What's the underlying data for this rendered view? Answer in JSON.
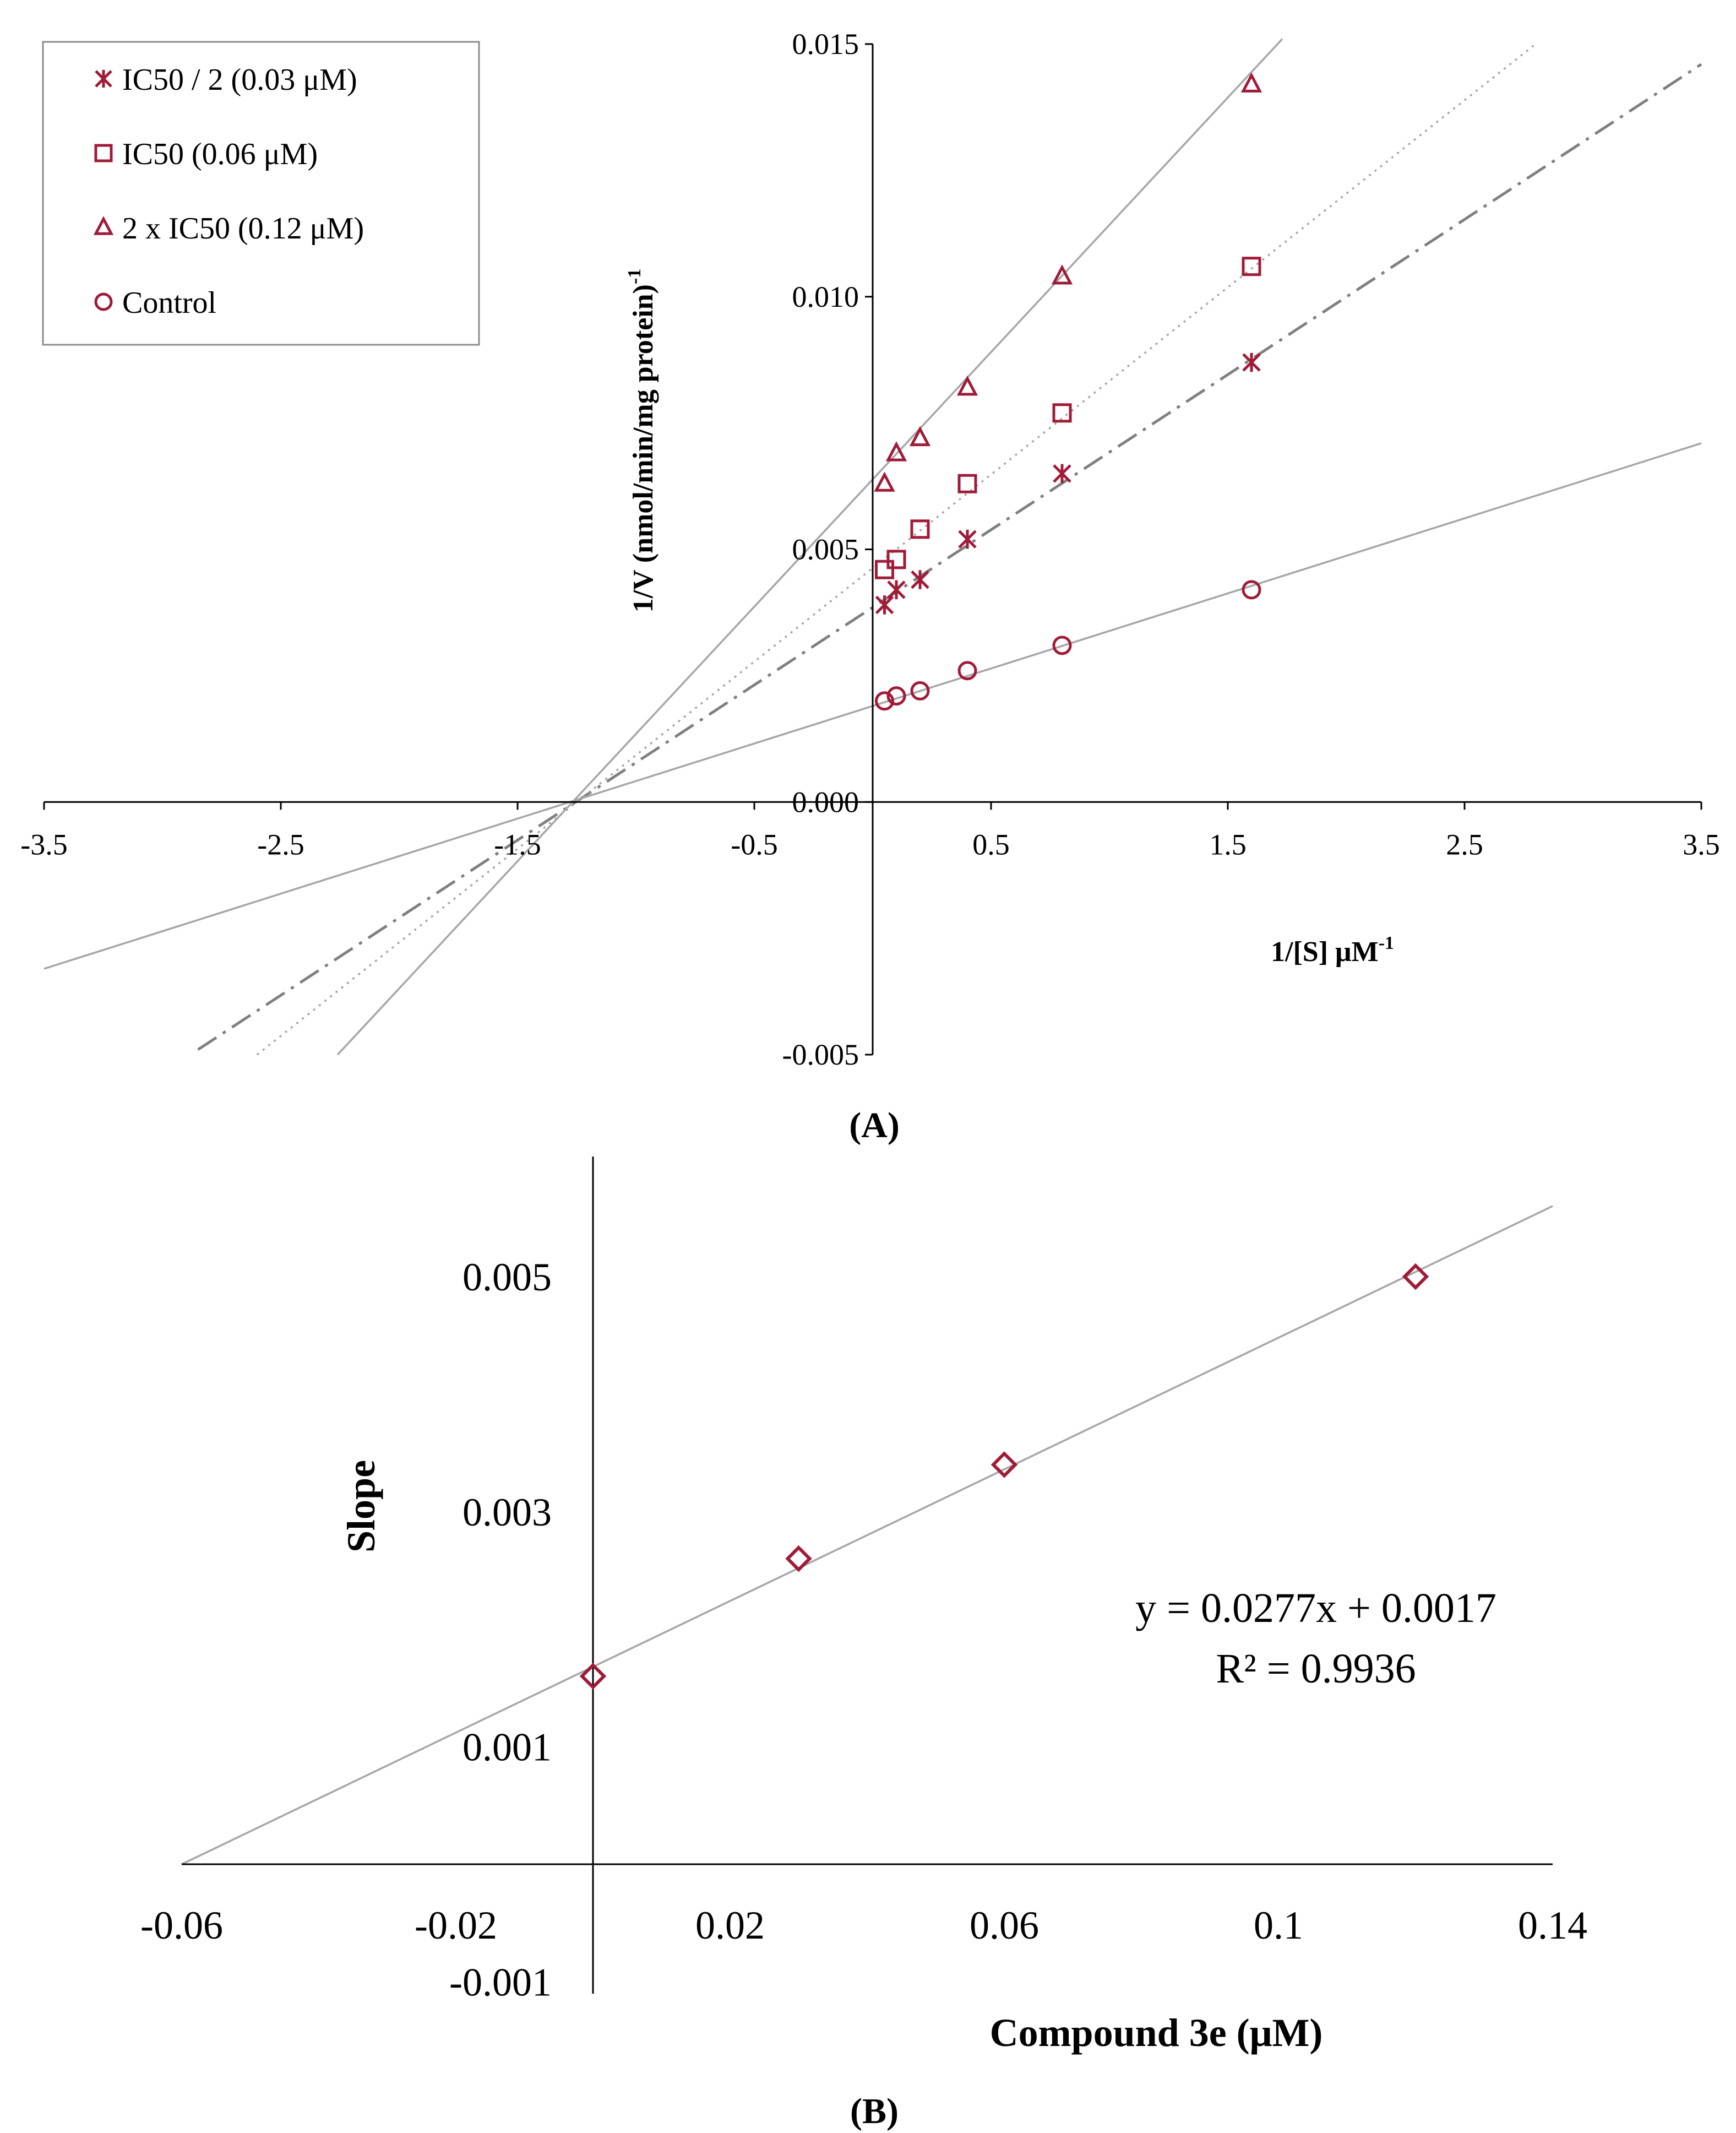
{
  "colors": {
    "marker": "#a01b38",
    "axis": "#000000",
    "fit_line": "#a6a6a6",
    "dash_line": "#7f7f7f"
  },
  "panel_labels": [
    "(A)",
    "(B)"
  ],
  "chart_data": [
    {
      "type": "scatter",
      "title": "",
      "xlabel": "1/[S] μM",
      "xlabel_sup": "-1",
      "ylabel": "1/V (nmol/min/mg protein)",
      "ylabel_sup": "-1",
      "xlim": [
        -3.5,
        3.5
      ],
      "ylim": [
        -0.005,
        0.015
      ],
      "x_ticks": [
        -3.5,
        -2.5,
        -1.5,
        -0.5,
        0.5,
        1.5,
        2.5,
        3.5
      ],
      "x_tick_labels": [
        "-3.5",
        "-2.5",
        "-1.5",
        "-0.5",
        "0.5",
        "1.5",
        "2.5",
        "3.5"
      ],
      "y_ticks": [
        -0.005,
        0.0,
        0.005,
        0.01,
        0.015
      ],
      "y_tick_labels": [
        "-0.005",
        "0.000",
        "0.005",
        "0.010",
        "0.015"
      ],
      "grid": false,
      "legend_position": "top-left",
      "series": [
        {
          "name": "IC50 / 2 (0.03 μM)",
          "marker": "asterisk",
          "line_style": "dash-dot",
          "x": [
            0.05,
            0.1,
            0.2,
            0.4,
            0.8,
            1.6
          ],
          "y": [
            0.0039,
            0.0042,
            0.0044,
            0.0052,
            0.0065,
            0.0087
          ],
          "fit": {
            "x": [
              -2.85,
              3.5
            ],
            "y": [
              -0.0049,
              0.0146
            ]
          }
        },
        {
          "name": "IC50 (0.06 μM)",
          "marker": "square",
          "line_style": "dotted",
          "x": [
            0.05,
            0.1,
            0.2,
            0.4,
            0.8,
            1.6
          ],
          "y": [
            0.0046,
            0.0048,
            0.0054,
            0.0063,
            0.0077,
            0.0106
          ],
          "fit": {
            "x": [
              -2.6,
              2.8
            ],
            "y": [
              -0.005,
              0.015
            ]
          }
        },
        {
          "name": "2 x IC50 (0.12 μM)",
          "marker": "triangle",
          "line_style": "solid",
          "x": [
            0.05,
            0.1,
            0.2,
            0.4,
            0.8,
            1.6
          ],
          "y": [
            0.0063,
            0.0069,
            0.0072,
            0.0082,
            0.0104,
            0.0142
          ],
          "fit": {
            "x": [
              -2.26,
              1.73
            ],
            "y": [
              -0.005,
              0.0151
            ]
          }
        },
        {
          "name": "Control",
          "marker": "circle",
          "line_style": "solid",
          "x": [
            0.05,
            0.1,
            0.2,
            0.4,
            0.8,
            1.6
          ],
          "y": [
            0.002,
            0.0021,
            0.0022,
            0.0026,
            0.0031,
            0.0042
          ],
          "fit": {
            "x": [
              -3.5,
              3.5
            ],
            "y": [
              -0.0033,
              0.0071
            ]
          }
        }
      ]
    },
    {
      "type": "scatter",
      "title": "",
      "xlabel": "Compound 3e (μM)",
      "ylabel": "Slope",
      "xlim": [
        -0.06,
        0.14
      ],
      "ylim": [
        -0.001,
        0.006
      ],
      "x_ticks": [
        -0.06,
        -0.02,
        0.02,
        0.06,
        0.1,
        0.14
      ],
      "x_tick_labels": [
        "-0.06",
        "-0.02",
        "0.02",
        "0.06",
        "0.1",
        "0.14"
      ],
      "y_ticks": [
        -0.001,
        0.001,
        0.003,
        0.005
      ],
      "y_tick_labels": [
        "-0.001",
        "0.001",
        "0.003",
        "0.005"
      ],
      "grid": false,
      "series": [
        {
          "marker": "diamond",
          "x": [
            0.0,
            0.03,
            0.06,
            0.12
          ],
          "y": [
            0.0016,
            0.0026,
            0.0034,
            0.005
          ],
          "fit": {
            "x": [
              -0.06,
              0.14
            ],
            "y": [
              0.0,
              0.0056
            ]
          }
        }
      ],
      "equation": "y = 0.0277x + 0.0017",
      "r_squared": "R² = 0.9936"
    }
  ]
}
